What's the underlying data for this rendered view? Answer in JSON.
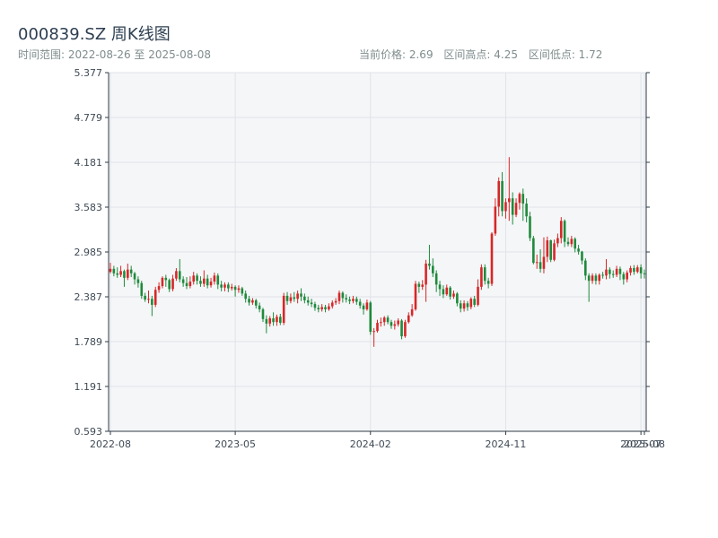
{
  "header": {
    "title": "000839.SZ 周K线图",
    "range_text": "时间范围: 2022-08-26 至 2025-08-08",
    "current_price": "当前价格: 2.69",
    "range_high": "区间高点: 4.25",
    "range_low": "区间低点: 1.72"
  },
  "colors": {
    "up": "#d62728",
    "down": "#1f8a3c",
    "plot_bg": "#f5f6f8",
    "grid": "#dfe3e8",
    "axis": "#2f3b45"
  },
  "chart_data": {
    "type": "candlestick",
    "ylim": [
      0.593,
      5.377
    ],
    "y_ticks": [
      "0.593",
      "1.191",
      "1.789",
      "2.387",
      "2.985",
      "3.583",
      "4.181",
      "4.779",
      "5.377"
    ],
    "x_ticks": [
      {
        "index": 0,
        "label": "2022-08"
      },
      {
        "index": 36,
        "label": "2023-05"
      },
      {
        "index": 75,
        "label": "2024-02"
      },
      {
        "index": 114,
        "label": "2024-11"
      },
      {
        "index": 153,
        "label": "2025-07"
      },
      {
        "index": 154,
        "label": "2025-08"
      }
    ],
    "grid": true,
    "ohlc": [
      [
        2.72,
        2.76,
        2.84,
        2.7
      ],
      [
        2.76,
        2.7,
        2.8,
        2.66
      ],
      [
        2.7,
        2.68,
        2.78,
        2.64
      ],
      [
        2.68,
        2.73,
        2.8,
        2.65
      ],
      [
        2.73,
        2.64,
        2.75,
        2.52
      ],
      [
        2.64,
        2.75,
        2.83,
        2.61
      ],
      [
        2.75,
        2.7,
        2.8,
        2.65
      ],
      [
        2.7,
        2.62,
        2.72,
        2.55
      ],
      [
        2.62,
        2.57,
        2.66,
        2.51
      ],
      [
        2.57,
        2.4,
        2.6,
        2.36
      ],
      [
        2.4,
        2.35,
        2.44,
        2.32
      ],
      [
        2.35,
        2.36,
        2.47,
        2.3
      ],
      [
        2.36,
        2.28,
        2.4,
        2.13
      ],
      [
        2.28,
        2.48,
        2.52,
        2.25
      ],
      [
        2.48,
        2.53,
        2.58,
        2.44
      ],
      [
        2.53,
        2.64,
        2.66,
        2.5
      ],
      [
        2.64,
        2.61,
        2.68,
        2.52
      ],
      [
        2.61,
        2.49,
        2.63,
        2.45
      ],
      [
        2.49,
        2.63,
        2.68,
        2.46
      ],
      [
        2.63,
        2.73,
        2.77,
        2.6
      ],
      [
        2.73,
        2.62,
        2.89,
        2.58
      ],
      [
        2.62,
        2.57,
        2.66,
        2.52
      ],
      [
        2.57,
        2.53,
        2.65,
        2.49
      ],
      [
        2.53,
        2.59,
        2.66,
        2.5
      ],
      [
        2.59,
        2.67,
        2.72,
        2.55
      ],
      [
        2.67,
        2.6,
        2.7,
        2.55
      ],
      [
        2.6,
        2.56,
        2.66,
        2.52
      ],
      [
        2.56,
        2.63,
        2.74,
        2.52
      ],
      [
        2.63,
        2.54,
        2.68,
        2.5
      ],
      [
        2.54,
        2.59,
        2.64,
        2.51
      ],
      [
        2.59,
        2.67,
        2.71,
        2.55
      ],
      [
        2.67,
        2.55,
        2.7,
        2.49
      ],
      [
        2.55,
        2.51,
        2.6,
        2.46
      ],
      [
        2.51,
        2.55,
        2.58,
        2.46
      ],
      [
        2.55,
        2.5,
        2.58,
        2.45
      ],
      [
        2.5,
        2.52,
        2.56,
        2.47
      ],
      [
        2.52,
        2.48,
        2.54,
        2.39
      ],
      [
        2.48,
        2.5,
        2.54,
        2.44
      ],
      [
        2.5,
        2.43,
        2.52,
        2.4
      ],
      [
        2.43,
        2.36,
        2.47,
        2.31
      ],
      [
        2.36,
        2.31,
        2.4,
        2.27
      ],
      [
        2.31,
        2.34,
        2.37,
        2.28
      ],
      [
        2.34,
        2.27,
        2.36,
        2.23
      ],
      [
        2.27,
        2.22,
        2.31,
        2.18
      ],
      [
        2.22,
        2.09,
        2.24,
        2.05
      ],
      [
        2.09,
        2.03,
        2.14,
        1.9
      ],
      [
        2.03,
        2.1,
        2.13,
        1.99
      ],
      [
        2.1,
        2.05,
        2.18,
        2.0
      ],
      [
        2.05,
        2.12,
        2.15,
        2.0
      ],
      [
        2.12,
        2.04,
        2.16,
        2.01
      ],
      [
        2.04,
        2.4,
        2.44,
        2.01
      ],
      [
        2.4,
        2.33,
        2.45,
        2.28
      ],
      [
        2.33,
        2.38,
        2.43,
        2.3
      ],
      [
        2.38,
        2.36,
        2.45,
        2.32
      ],
      [
        2.36,
        2.43,
        2.47,
        2.3
      ],
      [
        2.43,
        2.39,
        2.5,
        2.33
      ],
      [
        2.39,
        2.34,
        2.43,
        2.3
      ],
      [
        2.34,
        2.31,
        2.39,
        2.27
      ],
      [
        2.31,
        2.29,
        2.36,
        2.25
      ],
      [
        2.29,
        2.24,
        2.32,
        2.2
      ],
      [
        2.24,
        2.22,
        2.28,
        2.18
      ],
      [
        2.22,
        2.25,
        2.29,
        2.19
      ],
      [
        2.25,
        2.22,
        2.28,
        2.18
      ],
      [
        2.22,
        2.26,
        2.3,
        2.2
      ],
      [
        2.26,
        2.31,
        2.34,
        2.23
      ],
      [
        2.31,
        2.33,
        2.37,
        2.28
      ],
      [
        2.33,
        2.44,
        2.47,
        2.29
      ],
      [
        2.44,
        2.37,
        2.46,
        2.31
      ],
      [
        2.37,
        2.35,
        2.42,
        2.31
      ],
      [
        2.35,
        2.33,
        2.39,
        2.29
      ],
      [
        2.33,
        2.36,
        2.4,
        2.3
      ],
      [
        2.36,
        2.32,
        2.39,
        2.28
      ],
      [
        2.32,
        2.27,
        2.36,
        2.23
      ],
      [
        2.27,
        2.22,
        2.3,
        2.15
      ],
      [
        2.22,
        2.31,
        2.35,
        2.2
      ],
      [
        2.31,
        1.92,
        2.33,
        1.88
      ],
      [
        1.92,
        1.93,
        1.97,
        1.72
      ],
      [
        1.93,
        2.04,
        2.08,
        1.91
      ],
      [
        2.04,
        2.05,
        2.11,
        1.99
      ],
      [
        2.05,
        2.11,
        2.13,
        2.0
      ],
      [
        2.11,
        2.05,
        2.14,
        2.02
      ],
      [
        2.05,
        2.0,
        2.08,
        1.96
      ],
      [
        2.0,
        2.02,
        2.07,
        1.95
      ],
      [
        2.02,
        2.07,
        2.1,
        1.99
      ],
      [
        2.07,
        1.86,
        2.09,
        1.82
      ],
      [
        1.86,
        2.05,
        2.08,
        1.84
      ],
      [
        2.05,
        2.14,
        2.18,
        2.03
      ],
      [
        2.14,
        2.22,
        2.29,
        2.12
      ],
      [
        2.22,
        2.56,
        2.6,
        2.2
      ],
      [
        2.56,
        2.52,
        2.59,
        2.44
      ],
      [
        2.52,
        2.55,
        2.61,
        2.48
      ],
      [
        2.55,
        2.83,
        2.88,
        2.32
      ],
      [
        2.83,
        2.8,
        3.08,
        2.75
      ],
      [
        2.8,
        2.7,
        2.9,
        2.65
      ],
      [
        2.7,
        2.55,
        2.74,
        2.45
      ],
      [
        2.55,
        2.49,
        2.6,
        2.4
      ],
      [
        2.49,
        2.42,
        2.54,
        2.37
      ],
      [
        2.42,
        2.51,
        2.55,
        2.4
      ],
      [
        2.51,
        2.39,
        2.53,
        2.35
      ],
      [
        2.39,
        2.43,
        2.47,
        2.36
      ],
      [
        2.43,
        2.3,
        2.45,
        2.26
      ],
      [
        2.3,
        2.23,
        2.34,
        2.18
      ],
      [
        2.23,
        2.3,
        2.34,
        2.19
      ],
      [
        2.3,
        2.25,
        2.33,
        2.2
      ],
      [
        2.25,
        2.36,
        2.38,
        2.22
      ],
      [
        2.36,
        2.28,
        2.4,
        2.25
      ],
      [
        2.28,
        2.52,
        2.62,
        2.26
      ],
      [
        2.52,
        2.78,
        2.82,
        2.48
      ],
      [
        2.78,
        2.6,
        2.82,
        2.55
      ],
      [
        2.6,
        2.56,
        2.64,
        2.5
      ],
      [
        2.56,
        3.23,
        3.25,
        2.53
      ],
      [
        3.23,
        3.59,
        3.7,
        3.2
      ],
      [
        3.59,
        3.93,
        3.98,
        3.46
      ],
      [
        3.93,
        3.53,
        4.05,
        3.46
      ],
      [
        3.53,
        3.65,
        3.7,
        3.43
      ],
      [
        3.65,
        3.7,
        4.25,
        3.4
      ],
      [
        3.7,
        3.48,
        3.78,
        3.35
      ],
      [
        3.48,
        3.64,
        3.7,
        3.45
      ],
      [
        3.64,
        3.76,
        3.78,
        3.55
      ],
      [
        3.76,
        3.63,
        3.83,
        3.4
      ],
      [
        3.63,
        3.46,
        3.7,
        3.38
      ],
      [
        3.46,
        3.17,
        3.52,
        3.13
      ],
      [
        3.17,
        2.84,
        3.2,
        2.82
      ],
      [
        2.84,
        2.85,
        2.95,
        2.76
      ],
      [
        2.85,
        2.76,
        3.02,
        2.71
      ],
      [
        2.76,
        2.92,
        3.18,
        2.7
      ],
      [
        2.92,
        3.14,
        3.19,
        2.85
      ],
      [
        3.14,
        2.88,
        3.15,
        2.85
      ],
      [
        2.88,
        3.1,
        3.15,
        2.86
      ],
      [
        3.1,
        3.17,
        3.23,
        3.05
      ],
      [
        3.17,
        3.4,
        3.45,
        3.1
      ],
      [
        3.4,
        3.12,
        3.42,
        3.05
      ],
      [
        3.12,
        3.09,
        3.18,
        3.06
      ],
      [
        3.09,
        3.16,
        3.2,
        3.05
      ],
      [
        3.16,
        3.03,
        3.18,
        2.98
      ],
      [
        3.03,
        2.99,
        3.08,
        2.95
      ],
      [
        2.99,
        2.87,
        3.0,
        2.82
      ],
      [
        2.87,
        2.67,
        2.9,
        2.61
      ],
      [
        2.67,
        2.6,
        2.7,
        2.32
      ],
      [
        2.6,
        2.67,
        2.7,
        2.56
      ],
      [
        2.67,
        2.6,
        2.7,
        2.55
      ],
      [
        2.6,
        2.68,
        2.7,
        2.55
      ],
      [
        2.68,
        2.67,
        2.72,
        2.63
      ],
      [
        2.67,
        2.75,
        2.89,
        2.62
      ],
      [
        2.75,
        2.69,
        2.78,
        2.63
      ],
      [
        2.69,
        2.68,
        2.74,
        2.64
      ],
      [
        2.68,
        2.76,
        2.8,
        2.65
      ],
      [
        2.76,
        2.69,
        2.79,
        2.61
      ],
      [
        2.69,
        2.62,
        2.72,
        2.55
      ],
      [
        2.62,
        2.71,
        2.74,
        2.58
      ],
      [
        2.71,
        2.77,
        2.8,
        2.67
      ],
      [
        2.77,
        2.72,
        2.81,
        2.68
      ],
      [
        2.72,
        2.78,
        2.81,
        2.7
      ],
      [
        2.78,
        2.7,
        2.82,
        2.63
      ],
      [
        2.7,
        2.69,
        2.75,
        2.63
      ]
    ]
  }
}
